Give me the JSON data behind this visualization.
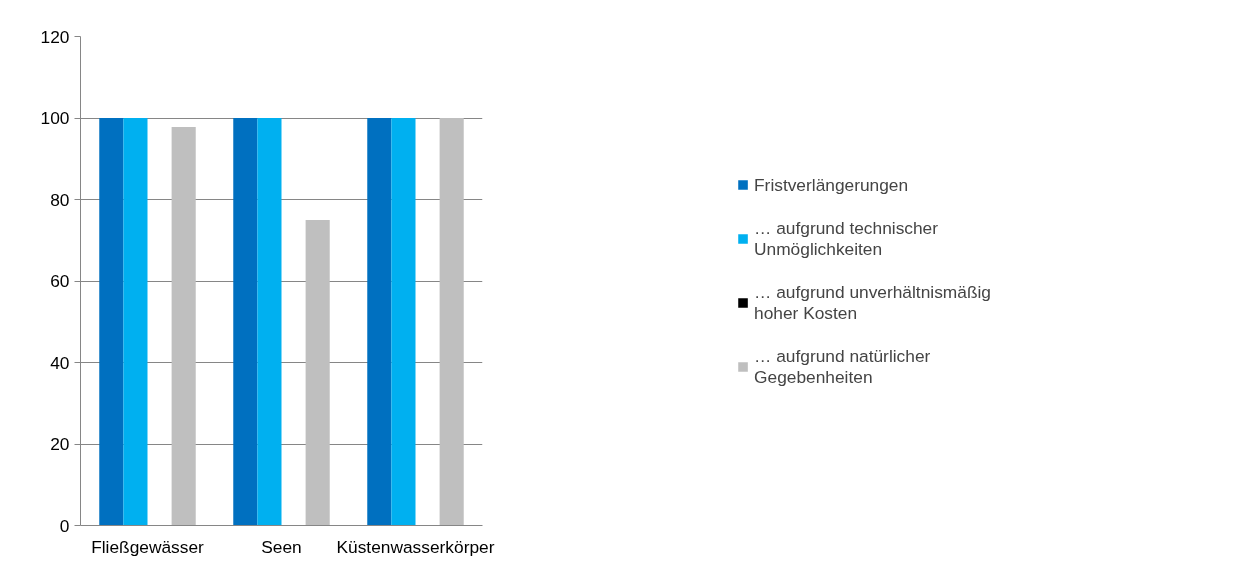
{
  "chart_data": {
    "type": "bar",
    "categories": [
      "Fließgewässer",
      "Seen",
      "Küstenwasserkörper"
    ],
    "series": [
      {
        "name": "Fristverlängerungen",
        "color": "#0070c0",
        "values": [
          100,
          100,
          100
        ]
      },
      {
        "name": "… aufgrund technischer Unmöglichkeiten",
        "color": "#00b0f0",
        "values": [
          100,
          100,
          100
        ]
      },
      {
        "name": "… aufgrund unverhältnismäßig hoher Kosten",
        "color": "#000000",
        "values": [
          0,
          0,
          0
        ]
      },
      {
        "name": "… aufgrund natürlicher Gegebenheiten",
        "color": "#bfbfbf",
        "values": [
          97.8,
          75,
          100
        ]
      }
    ],
    "ylim": [
      0,
      120
    ],
    "yticks": [
      0,
      20,
      40,
      60,
      80,
      100,
      120
    ],
    "grid": "y",
    "legend": "right"
  }
}
